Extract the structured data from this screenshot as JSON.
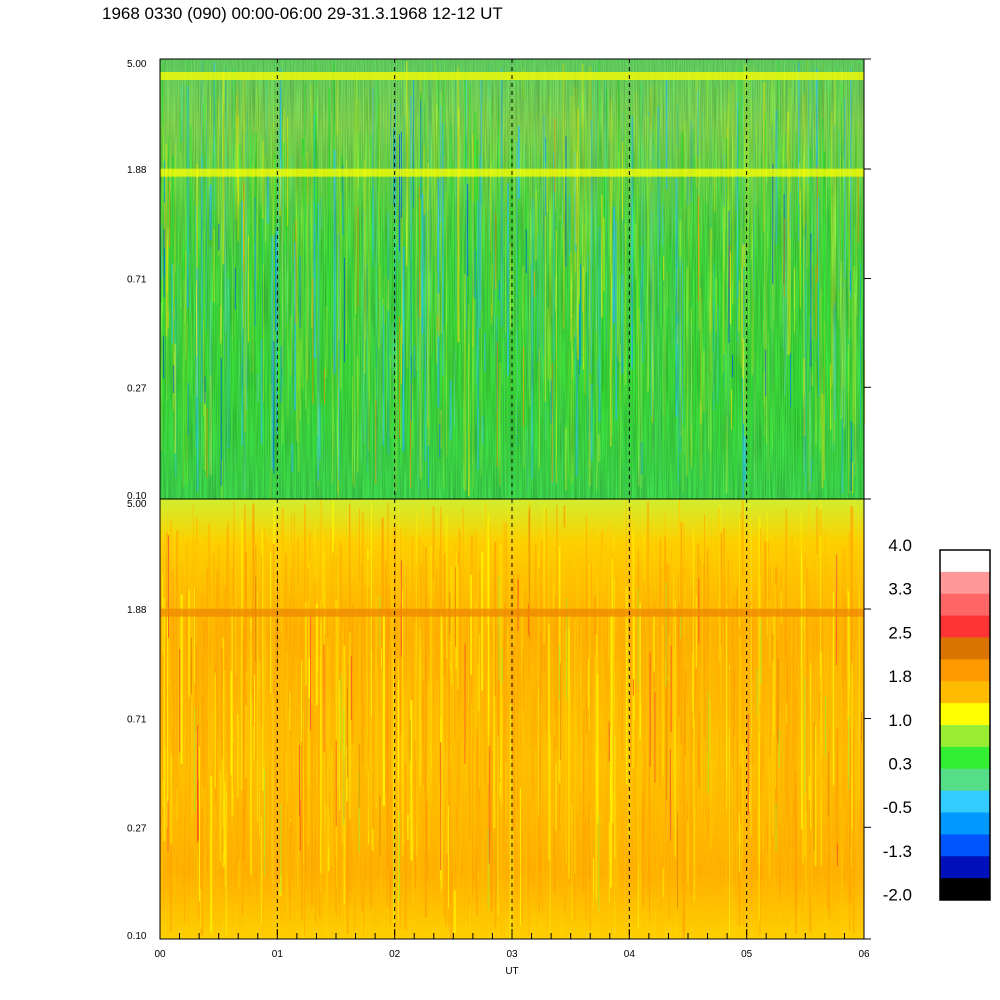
{
  "title": "1968 0330 (090) 00:00-06:00 29-31.3.1968  12-12 UT",
  "chart_data": [
    {
      "type": "heatmap",
      "panel": "top",
      "xlabel": "",
      "ylabel": "",
      "xlim": [
        "00",
        "06"
      ],
      "ylim": [
        0.1,
        5.0
      ],
      "yscale": "log",
      "ytick_labels": [
        "5.00",
        "1.88",
        "0.71",
        "0.27",
        "0.10"
      ],
      "ytick_values": [
        5.0,
        1.88,
        0.71,
        0.27,
        0.1
      ],
      "hour_markers": [
        "01",
        "02",
        "03",
        "04",
        "05"
      ],
      "dominant_colors": [
        "green",
        "yellow-green",
        "yellow",
        "cyan"
      ],
      "bands": [
        {
          "y": 4.3,
          "color": "yellow"
        },
        {
          "y": 1.82,
          "color": "yellow"
        }
      ]
    },
    {
      "type": "heatmap",
      "panel": "bottom",
      "xlabel": "UT",
      "ylabel": "",
      "xlim": [
        "00",
        "06"
      ],
      "ylim": [
        0.1,
        5.0
      ],
      "yscale": "log",
      "ytick_labels": [
        "5.00",
        "1.88",
        "0.71",
        "0.27",
        "0.10"
      ],
      "ytick_values": [
        5.0,
        1.88,
        0.71,
        0.27,
        0.1
      ],
      "xtick_labels": [
        "00",
        "01",
        "02",
        "03",
        "04",
        "05",
        "06"
      ],
      "hour_markers": [
        "01",
        "02",
        "03",
        "04",
        "05"
      ],
      "dominant_colors": [
        "orange",
        "yellow",
        "light-orange"
      ],
      "bands": [
        {
          "y": 1.82,
          "color": "dark-orange"
        }
      ]
    }
  ],
  "colorbar": {
    "labels": [
      "4.0",
      "3.3",
      "2.5",
      "1.8",
      "1.0",
      "0.3",
      "-0.5",
      "-1.3",
      "-2.0"
    ],
    "colors_top_to_bottom": [
      "#ffffff",
      "#ff9999",
      "#ff6666",
      "#ff3333",
      "#d97400",
      "#ff9900",
      "#ffbb00",
      "#ffff00",
      "#99ee33",
      "#33ee33",
      "#55dd88",
      "#33ccff",
      "#0099ff",
      "#0055ff",
      "#0011bb",
      "#000000"
    ]
  }
}
